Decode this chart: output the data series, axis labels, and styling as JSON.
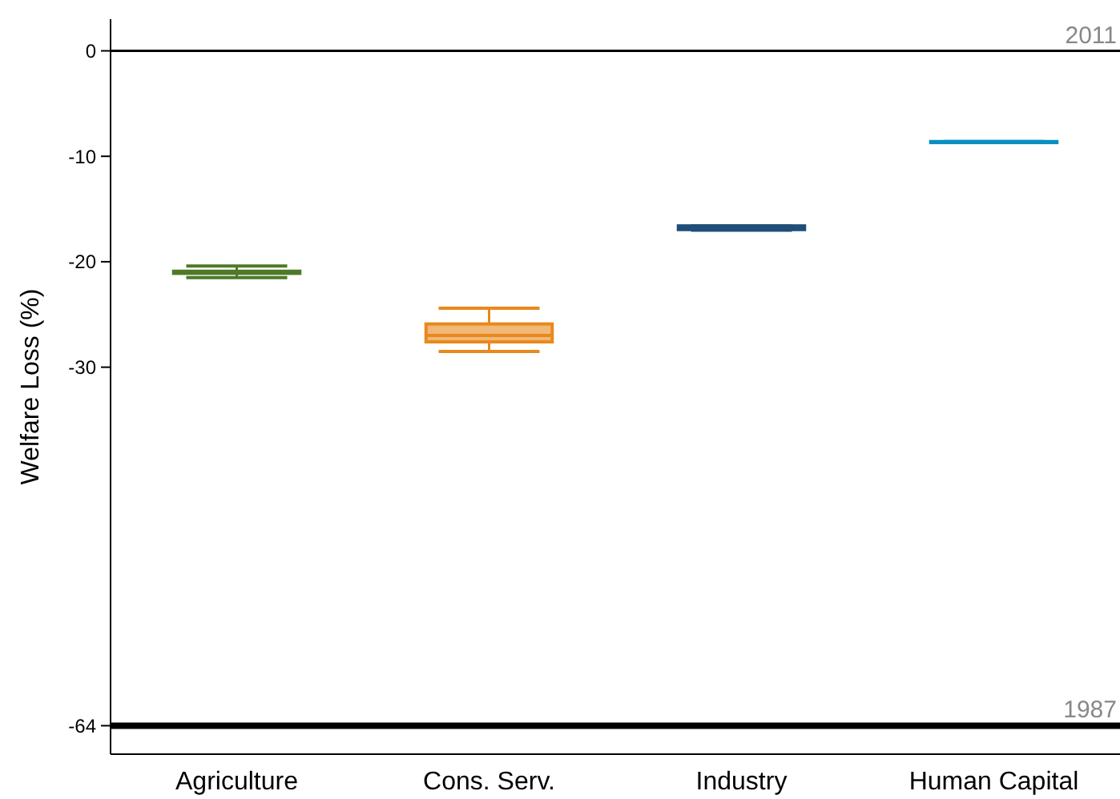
{
  "chart_data": {
    "type": "box",
    "ylabel": "Welfare Loss (%)",
    "categories": [
      "Agriculture",
      "Cons. Serv.",
      "Industry",
      "Human Capital"
    ],
    "colors": [
      "#4e7a27",
      "#e8891c",
      "#1f4e79",
      "#0a8fc0"
    ],
    "boxes": [
      {
        "low": -21.5,
        "q1": -21.1,
        "median": -21.0,
        "q3": -20.9,
        "high": -20.4
      },
      {
        "low": -28.5,
        "q1": -27.6,
        "median": -27.0,
        "q3": -25.9,
        "high": -24.4
      },
      {
        "low": -17.0,
        "q1": -16.95,
        "median": -16.8,
        "q3": -16.6,
        "high": -16.6
      },
      {
        "low": -8.7,
        "q1": -8.7,
        "median": -8.65,
        "q3": -8.6,
        "high": -8.6
      }
    ],
    "ylim": [
      -66.7,
      3
    ],
    "yticks": [
      0,
      -10,
      -20,
      -30,
      -64
    ],
    "ref_lines": [
      {
        "axis": "y",
        "value": 0,
        "color": "#000000"
      },
      {
        "axis": "y",
        "value": -64,
        "color": "#000000"
      }
    ],
    "annotations": [
      {
        "text": "2011",
        "y": 0
      },
      {
        "text": "1987",
        "y": -64
      }
    ],
    "grid": false
  }
}
